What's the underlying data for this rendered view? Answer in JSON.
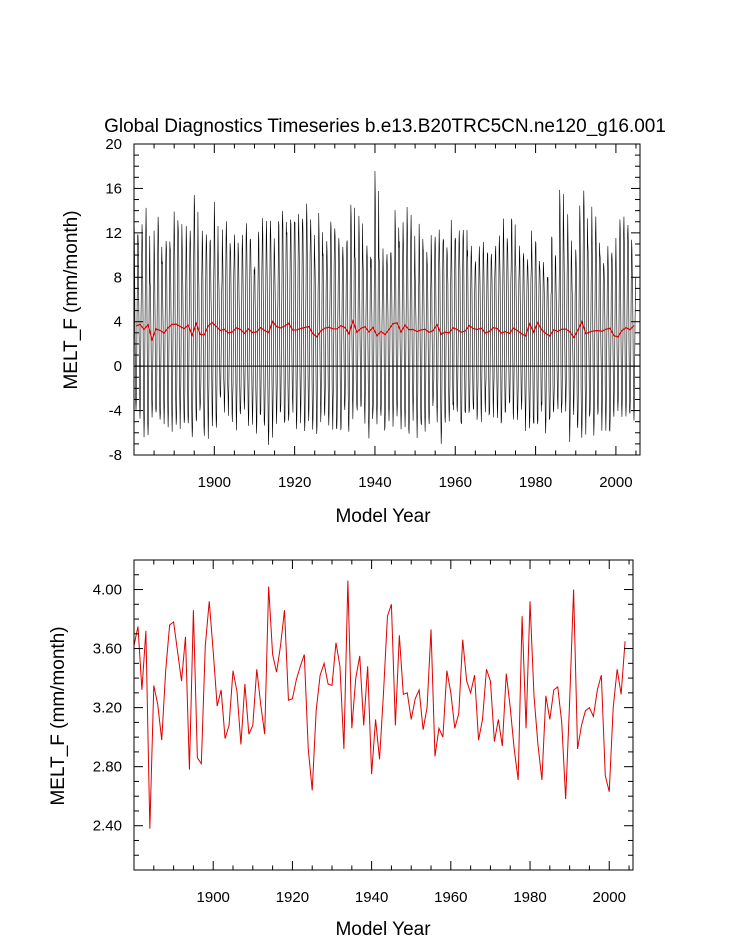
{
  "chart_data": [
    {
      "type": "line",
      "title": "Global Diagnostics Timeseries b.e13.B20TRC5CN.ne120_g16.001",
      "xlabel": "Model Year",
      "ylabel": "MELT_F (mm/month)",
      "xlim": [
        1880,
        2006
      ],
      "ylim": [
        -8,
        20
      ],
      "xticks": [
        "1900",
        "1920",
        "1940",
        "1960",
        "1980",
        "2000"
      ],
      "yticks": [
        "-8",
        "-4",
        "0",
        "4",
        "8",
        "12",
        "16",
        "20"
      ],
      "zero_line": true,
      "grid": false,
      "monthly_envelope": {
        "mean_high": 11.5,
        "mean_low": -5.0,
        "max_peak": 20.0,
        "min_trough": -6.5
      },
      "series": [
        {
          "name": "",
          "color": "#000000",
          "kind": "monthly"
        },
        {
          "name": "",
          "color": "#e00000",
          "kind": "annual-mean",
          "values_ref": "annual"
        }
      ]
    },
    {
      "type": "line",
      "title": "",
      "xlabel": "Model Year",
      "ylabel": "MELT_F (mm/month)",
      "xlim": [
        1880,
        2006
      ],
      "ylim": [
        2.1,
        4.2
      ],
      "xticks": [
        "1900",
        "1920",
        "1940",
        "1960",
        "1980",
        "2000"
      ],
      "yticks": [
        "2.40",
        "2.80",
        "3.20",
        "3.60",
        "4.00"
      ],
      "grid": false,
      "series": [
        {
          "name": "",
          "color": "#e00000",
          "x_start": 1880,
          "values": [
            3.62,
            3.75,
            3.32,
            3.72,
            2.38,
            3.35,
            3.22,
            2.98,
            3.45,
            3.76,
            3.78,
            3.58,
            3.38,
            3.68,
            2.78,
            3.86,
            2.86,
            2.82,
            3.62,
            3.92,
            3.58,
            3.21,
            3.32,
            2.99,
            3.08,
            3.45,
            3.31,
            2.95,
            3.36,
            3.02,
            3.08,
            3.46,
            3.22,
            3.02,
            4.02,
            3.56,
            3.44,
            3.62,
            3.86,
            3.25,
            3.26,
            3.39,
            3.48,
            3.56,
            2.92,
            2.64,
            3.18,
            3.42,
            3.5,
            3.36,
            3.35,
            3.64,
            3.48,
            2.92,
            4.06,
            3.06,
            3.4,
            3.55,
            3.08,
            3.48,
            2.75,
            3.12,
            2.85,
            3.3,
            3.82,
            3.9,
            3.08,
            3.69,
            3.29,
            3.3,
            3.12,
            3.26,
            3.32,
            3.05,
            3.2,
            3.73,
            2.87,
            3.06,
            3.0,
            3.45,
            3.3,
            3.06,
            3.16,
            3.66,
            3.38,
            3.3,
            3.42,
            2.98,
            3.12,
            3.46,
            3.38,
            2.97,
            3.12,
            2.94,
            3.43,
            3.2,
            2.92,
            2.71,
            3.82,
            3.06,
            3.92,
            3.28,
            2.95,
            2.71,
            3.28,
            3.12,
            3.32,
            3.34,
            3.1,
            2.58,
            3.24,
            4.0,
            2.92,
            3.08,
            3.18,
            3.2,
            3.14,
            3.32,
            3.42,
            2.74,
            2.63,
            3.2,
            3.46,
            3.29,
            3.65
          ]
        }
      ]
    }
  ]
}
